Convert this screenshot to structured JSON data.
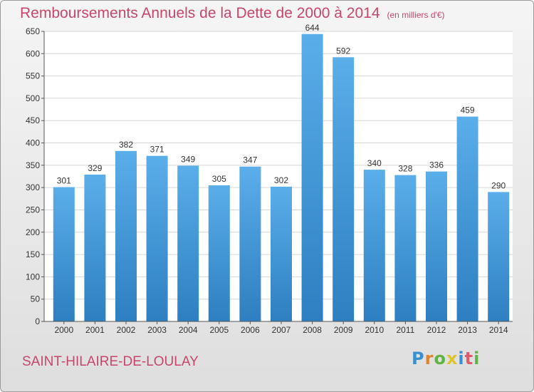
{
  "title": "Remboursements Annuels de la Dette de 2000 à 2014",
  "unit": "(en milliers d'€)",
  "place": "SAINT-HILAIRE-DE-LOULAY",
  "logo": "Proxiti",
  "colors": {
    "bar_top": "#5aaee9",
    "bar_bottom": "#2d7fc1",
    "title": "#c8466a"
  },
  "chart_data": {
    "type": "bar",
    "title": "Remboursements Annuels de la Dette de 2000 à 2014",
    "ylim": [
      0,
      650
    ],
    "ytick_step": 50,
    "grid": true,
    "categories": [
      "2000",
      "2001",
      "2002",
      "2003",
      "2004",
      "2005",
      "2006",
      "2007",
      "2008",
      "2009",
      "2010",
      "2011",
      "2012",
      "2013",
      "2014"
    ],
    "values": [
      301,
      329,
      382,
      371,
      349,
      305,
      347,
      302,
      644,
      592,
      340,
      328,
      336,
      459,
      290
    ]
  }
}
